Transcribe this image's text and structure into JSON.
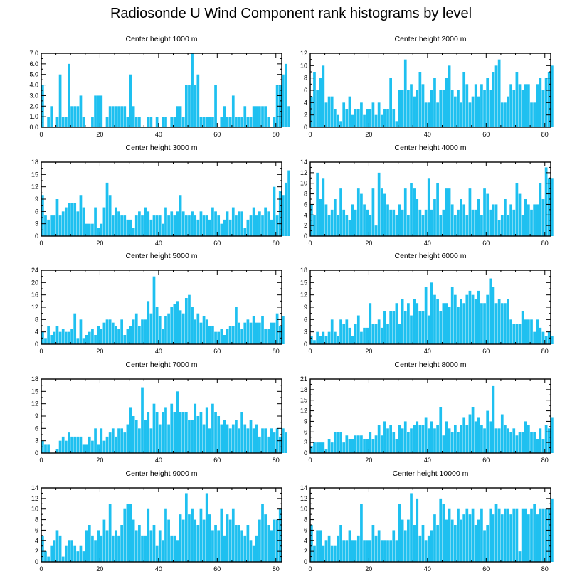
{
  "title": "Radiosonde U Wind Component rank histograms by level",
  "colors": {
    "bar": "#1ec0f0",
    "axis": "#000000"
  },
  "chart_data": [
    {
      "type": "bar",
      "title": "Center height 1000 m",
      "xlim": [
        0,
        82
      ],
      "ylim": [
        0,
        7
      ],
      "xticks": [
        0,
        20,
        40,
        60,
        80
      ],
      "yticks": [
        "0.0",
        "1.0",
        "2.0",
        "3.0",
        "4.0",
        "5.0",
        "6.0",
        "7.0"
      ],
      "ytick_values": [
        0,
        1,
        2,
        3,
        4,
        5,
        6,
        7
      ],
      "values": [
        4,
        0,
        1,
        2,
        0,
        1,
        5,
        1,
        1,
        6,
        2,
        2,
        2,
        3,
        1,
        0,
        0,
        1,
        3,
        3,
        3,
        0,
        1,
        2,
        2,
        2,
        2,
        2,
        2,
        1,
        5,
        2,
        1,
        1,
        0,
        0,
        1,
        1,
        0,
        1,
        0,
        1,
        1,
        0,
        1,
        1,
        2,
        2,
        1,
        4,
        4,
        7,
        4,
        5,
        1,
        1,
        1,
        1,
        1,
        4,
        0,
        1,
        2,
        1,
        1,
        3,
        1,
        1,
        1,
        2,
        1,
        1,
        2,
        2,
        2,
        2,
        2,
        1,
        0,
        1,
        4,
        4,
        5,
        6,
        2
      ]
    },
    {
      "type": "bar",
      "title": "Center height 2000 m",
      "xlim": [
        0,
        82
      ],
      "ylim": [
        0,
        12
      ],
      "xticks": [
        0,
        20,
        40,
        60,
        80
      ],
      "yticks": [
        "0",
        "2",
        "4",
        "6",
        "8",
        "10",
        "12"
      ],
      "ytick_values": [
        0,
        2,
        4,
        6,
        8,
        10,
        12
      ],
      "values": [
        5,
        9,
        6,
        8,
        10,
        4,
        5,
        5,
        3,
        2,
        1,
        4,
        3,
        5,
        2,
        3,
        3,
        4,
        2,
        3,
        3,
        4,
        2,
        4,
        2,
        3,
        3,
        8,
        3,
        1,
        6,
        6,
        11,
        6,
        7,
        5,
        6,
        9,
        7,
        4,
        4,
        6,
        8,
        4,
        6,
        6,
        8,
        10,
        6,
        5,
        6,
        4,
        9,
        7,
        4,
        5,
        7,
        5,
        7,
        6,
        8,
        6,
        9,
        10,
        11,
        4,
        4,
        5,
        7,
        6,
        9,
        7,
        6,
        7,
        7,
        4,
        4,
        7,
        8,
        6,
        8,
        9,
        10
      ]
    },
    {
      "type": "bar",
      "title": "Center height 3000 m",
      "xlim": [
        0,
        82
      ],
      "ylim": [
        0,
        18
      ],
      "xticks": [
        0,
        20,
        40,
        60,
        80
      ],
      "yticks": [
        "0",
        "3",
        "6",
        "9",
        "12",
        "15",
        "18"
      ],
      "ytick_values": [
        0,
        3,
        6,
        9,
        12,
        15,
        18
      ],
      "values": [
        10,
        5,
        4,
        5,
        5,
        9,
        5,
        6,
        7,
        8,
        8,
        8,
        6,
        10,
        7,
        3,
        3,
        3,
        7,
        2,
        3,
        7,
        13,
        10,
        5,
        7,
        6,
        5,
        5,
        4,
        4,
        2,
        5,
        6,
        5,
        7,
        6,
        4,
        5,
        5,
        5,
        3,
        7,
        5,
        6,
        5,
        6,
        10,
        6,
        5,
        5,
        6,
        5,
        4,
        6,
        5,
        5,
        4,
        7,
        6,
        5,
        3,
        4,
        6,
        4,
        7,
        5,
        6,
        6,
        2,
        4,
        5,
        7,
        5,
        6,
        5,
        7,
        6,
        4,
        12,
        5,
        11,
        10,
        13,
        16
      ]
    },
    {
      "type": "bar",
      "title": "Center height 4000 m",
      "xlim": [
        0,
        82
      ],
      "ylim": [
        0,
        14
      ],
      "xticks": [
        0,
        20,
        40,
        60,
        80
      ],
      "yticks": [
        "0",
        "2",
        "4",
        "6",
        "8",
        "10",
        "12",
        "14"
      ],
      "ytick_values": [
        0,
        2,
        4,
        6,
        8,
        10,
        12,
        14
      ],
      "values": [
        6,
        4,
        12,
        7,
        11,
        6,
        4,
        5,
        7,
        4,
        9,
        5,
        4,
        3,
        6,
        5,
        9,
        8,
        6,
        5,
        4,
        9,
        2,
        12,
        9,
        8,
        6,
        5,
        5,
        4,
        6,
        5,
        9,
        4,
        10,
        9,
        7,
        5,
        4,
        5,
        11,
        5,
        7,
        10,
        4,
        5,
        9,
        9,
        6,
        4,
        5,
        7,
        6,
        4,
        9,
        5,
        5,
        7,
        4,
        9,
        8,
        5,
        6,
        6,
        3,
        4,
        7,
        4,
        6,
        5,
        10,
        8,
        4,
        7,
        6,
        5,
        6,
        6,
        10,
        7,
        13,
        11,
        11
      ]
    },
    {
      "type": "bar",
      "title": "Center height 5000 m",
      "xlim": [
        0,
        82
      ],
      "ylim": [
        0,
        24
      ],
      "xticks": [
        0,
        20,
        40,
        60,
        80
      ],
      "yticks": [
        "0",
        "4",
        "8",
        "12",
        "16",
        "20",
        "24"
      ],
      "ytick_values": [
        0,
        4,
        8,
        12,
        16,
        20,
        24
      ],
      "values": [
        4,
        2,
        6,
        3,
        4,
        6,
        4,
        5,
        4,
        4,
        5,
        10,
        2,
        8,
        2,
        3,
        4,
        5,
        3,
        6,
        5,
        7,
        8,
        8,
        7,
        6,
        5,
        8,
        3,
        5,
        6,
        8,
        10,
        6,
        8,
        8,
        14,
        10,
        22,
        12,
        9,
        5,
        9,
        10,
        12,
        13,
        14,
        11,
        10,
        15,
        16,
        12,
        8,
        10,
        7,
        9,
        8,
        6,
        6,
        4,
        4,
        5,
        3,
        5,
        6,
        6,
        12,
        7,
        5,
        7,
        8,
        7,
        9,
        7,
        7,
        9,
        5,
        5,
        7,
        7,
        10,
        6,
        9
      ]
    },
    {
      "type": "bar",
      "title": "Center height 6000 m",
      "xlim": [
        0,
        82
      ],
      "ylim": [
        0,
        18
      ],
      "xticks": [
        0,
        20,
        40,
        60,
        80
      ],
      "yticks": [
        "0",
        "3",
        "6",
        "9",
        "12",
        "15",
        "18"
      ],
      "ytick_values": [
        0,
        3,
        6,
        9,
        12,
        15,
        18
      ],
      "values": [
        2,
        1,
        3,
        2,
        3,
        2,
        3,
        6,
        3,
        2,
        6,
        5,
        6,
        4,
        2,
        5,
        7,
        3,
        4,
        4,
        10,
        5,
        5,
        6,
        4,
        8,
        5,
        8,
        8,
        10,
        5,
        11,
        8,
        10,
        7,
        11,
        10,
        8,
        8,
        14,
        7,
        15,
        12,
        11,
        8,
        10,
        10,
        9,
        14,
        12,
        9,
        11,
        10,
        12,
        13,
        12,
        11,
        13,
        10,
        10,
        12,
        16,
        14,
        10,
        11,
        10,
        10,
        11,
        6,
        5,
        5,
        5,
        8,
        6,
        6,
        6,
        3,
        6,
        4,
        3,
        2,
        3,
        2
      ]
    },
    {
      "type": "bar",
      "title": "Center height 7000 m",
      "xlim": [
        0,
        82
      ],
      "ylim": [
        0,
        18
      ],
      "xticks": [
        0,
        20,
        40,
        60,
        80
      ],
      "yticks": [
        "0",
        "3",
        "6",
        "9",
        "12",
        "15",
        "18"
      ],
      "ytick_values": [
        0,
        3,
        6,
        9,
        12,
        15,
        18
      ],
      "values": [
        3,
        2,
        2,
        0,
        0,
        1,
        3,
        4,
        3,
        5,
        4,
        4,
        4,
        4,
        2,
        2,
        4,
        3,
        6,
        2,
        6,
        3,
        4,
        5,
        6,
        4,
        6,
        6,
        5,
        7,
        11,
        9,
        8,
        6,
        16,
        8,
        10,
        6,
        12,
        10,
        7,
        10,
        11,
        7,
        12,
        10,
        15,
        10,
        10,
        10,
        8,
        8,
        12,
        9,
        10,
        7,
        11,
        6,
        12,
        10,
        9,
        7,
        8,
        7,
        6,
        7,
        8,
        6,
        10,
        7,
        6,
        8,
        6,
        7,
        4,
        6,
        6,
        4,
        6,
        5,
        6,
        4,
        6,
        5
      ]
    },
    {
      "type": "bar",
      "title": "Center height 8000 m",
      "xlim": [
        0,
        82
      ],
      "ylim": [
        0,
        21
      ],
      "xticks": [
        0,
        20,
        40,
        60,
        80
      ],
      "yticks": [
        "0",
        "3",
        "6",
        "9",
        "12",
        "15",
        "18",
        "21"
      ],
      "ytick_values": [
        0,
        3,
        6,
        9,
        12,
        15,
        18,
        21
      ],
      "values": [
        2,
        3,
        3,
        3,
        3,
        1,
        4,
        3,
        6,
        6,
        6,
        3,
        5,
        4,
        4,
        5,
        5,
        5,
        4,
        4,
        6,
        4,
        5,
        8,
        5,
        9,
        7,
        8,
        6,
        4,
        8,
        7,
        9,
        6,
        7,
        8,
        9,
        8,
        8,
        10,
        7,
        9,
        7,
        8,
        13,
        5,
        9,
        7,
        6,
        8,
        6,
        8,
        10,
        8,
        11,
        13,
        9,
        10,
        8,
        7,
        12,
        9,
        19,
        7,
        7,
        11,
        8,
        7,
        6,
        7,
        5,
        6,
        6,
        9,
        8,
        6,
        6,
        4,
        7,
        4,
        8,
        7,
        10
      ]
    },
    {
      "type": "bar",
      "title": "Center height 9000 m",
      "xlim": [
        0,
        82
      ],
      "ylim": [
        0,
        14
      ],
      "xticks": [
        0,
        20,
        40,
        60,
        80
      ],
      "yticks": [
        "0",
        "2",
        "4",
        "6",
        "8",
        "10",
        "12",
        "14"
      ],
      "ytick_values": [
        0,
        2,
        4,
        6,
        8,
        10,
        12,
        14
      ],
      "values": [
        5,
        2,
        1,
        3,
        4,
        6,
        5,
        1,
        3,
        4,
        4,
        3,
        2,
        3,
        2,
        6,
        7,
        5,
        4,
        6,
        5,
        8,
        6,
        11,
        5,
        6,
        5,
        7,
        10,
        11,
        11,
        8,
        6,
        7,
        5,
        5,
        10,
        6,
        7,
        3,
        6,
        4,
        10,
        8,
        5,
        5,
        4,
        9,
        8,
        13,
        9,
        10,
        8,
        7,
        10,
        8,
        13,
        9,
        6,
        7,
        6,
        10,
        5,
        9,
        8,
        10,
        7,
        7,
        6,
        5,
        7,
        4,
        3,
        5,
        8,
        11,
        9,
        7,
        6,
        8,
        8,
        10
      ]
    },
    {
      "type": "bar",
      "title": "Center height 10000 m",
      "xlim": [
        0,
        82
      ],
      "ylim": [
        0,
        14
      ],
      "xticks": [
        0,
        20,
        40,
        60,
        80
      ],
      "yticks": [
        "0",
        "2",
        "4",
        "6",
        "8",
        "10",
        "12",
        "14"
      ],
      "ytick_values": [
        0,
        2,
        4,
        6,
        8,
        10,
        12,
        14
      ],
      "values": [
        7,
        3,
        6,
        6,
        3,
        4,
        5,
        3,
        3,
        5,
        7,
        4,
        4,
        6,
        4,
        4,
        5,
        11,
        4,
        4,
        4,
        7,
        5,
        6,
        4,
        4,
        4,
        4,
        6,
        4,
        11,
        8,
        6,
        8,
        13,
        7,
        12,
        5,
        7,
        4,
        5,
        6,
        9,
        7,
        12,
        11,
        8,
        10,
        8,
        7,
        10,
        8,
        9,
        10,
        9,
        10,
        7,
        8,
        10,
        6,
        7,
        10,
        9,
        11,
        10,
        9,
        10,
        10,
        9,
        10,
        10,
        2,
        10,
        10,
        9,
        10,
        11,
        9,
        10,
        10,
        10,
        10,
        12
      ]
    }
  ]
}
